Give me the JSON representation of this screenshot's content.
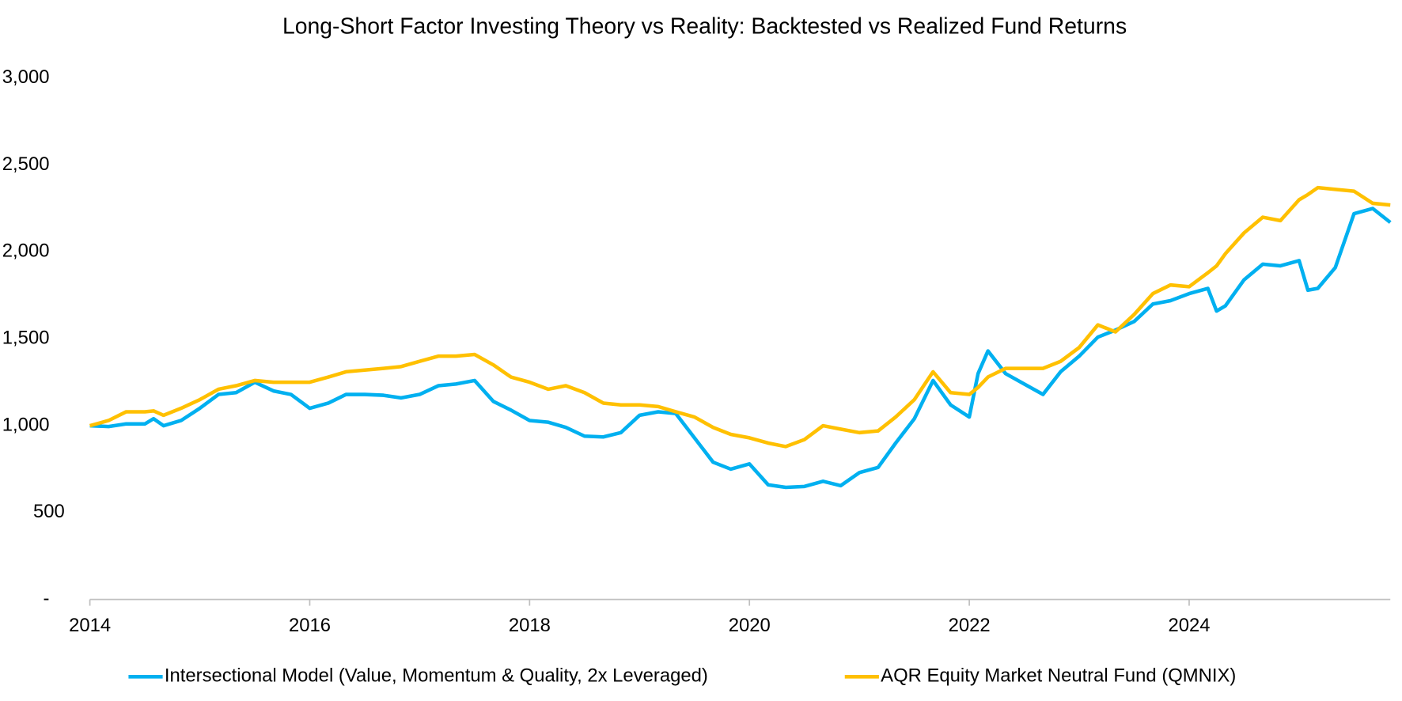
{
  "chart_data": {
    "type": "line",
    "title": "Long-Short Factor Investing Theory vs Reality: Backtested vs Realized Fund Returns",
    "x": [
      2014.0,
      2014.17,
      2014.33,
      2014.5,
      2014.58,
      2014.67,
      2014.83,
      2015.0,
      2015.17,
      2015.33,
      2015.5,
      2015.67,
      2015.83,
      2016.0,
      2016.17,
      2016.33,
      2016.5,
      2016.67,
      2016.83,
      2017.0,
      2017.17,
      2017.33,
      2017.5,
      2017.67,
      2017.83,
      2018.0,
      2018.17,
      2018.33,
      2018.5,
      2018.67,
      2018.83,
      2019.0,
      2019.17,
      2019.33,
      2019.5,
      2019.67,
      2019.83,
      2020.0,
      2020.17,
      2020.33,
      2020.5,
      2020.67,
      2020.83,
      2021.0,
      2021.17,
      2021.33,
      2021.5,
      2021.67,
      2021.83,
      2022.0,
      2022.08,
      2022.17,
      2022.33,
      2022.5,
      2022.67,
      2022.83,
      2023.0,
      2023.17,
      2023.33,
      2023.5,
      2023.67,
      2023.83,
      2024.0,
      2024.17,
      2024.25,
      2024.33,
      2024.5,
      2024.67,
      2024.83,
      2025.0,
      2025.08,
      2025.17,
      2025.33,
      2025.5,
      2025.67,
      2025.83
    ],
    "series": [
      {
        "name": "Intersectional Model (Value, Momentum & Quality, 2x Leveraged)",
        "color": "#00b0f0",
        "values": [
          1000,
          995,
          1010,
          1010,
          1040,
          1000,
          1030,
          1100,
          1180,
          1190,
          1250,
          1200,
          1180,
          1100,
          1130,
          1180,
          1180,
          1175,
          1160,
          1180,
          1230,
          1240,
          1260,
          1140,
          1090,
          1030,
          1020,
          990,
          940,
          935,
          960,
          1060,
          1080,
          1070,
          930,
          790,
          750,
          780,
          660,
          645,
          650,
          680,
          655,
          730,
          760,
          900,
          1040,
          1260,
          1120,
          1050,
          1300,
          1430,
          1300,
          1240,
          1180,
          1310,
          1400,
          1510,
          1550,
          1600,
          1700,
          1720,
          1760,
          1790,
          1660,
          1690,
          1840,
          1930,
          1920,
          1950,
          1780,
          1790,
          1910,
          2220,
          2250,
          2170
        ]
      },
      {
        "name": "AQR Equity Market Neutral Fund (QMNIX)",
        "color": "#ffc000",
        "values": [
          1000,
          1030,
          1080,
          1080,
          1085,
          1060,
          1100,
          1150,
          1210,
          1230,
          1260,
          1250,
          1250,
          1250,
          1280,
          1310,
          1320,
          1330,
          1340,
          1370,
          1400,
          1400,
          1410,
          1350,
          1280,
          1250,
          1210,
          1230,
          1190,
          1130,
          1120,
          1120,
          1110,
          1080,
          1050,
          990,
          950,
          930,
          900,
          880,
          920,
          1000,
          980,
          960,
          970,
          1050,
          1150,
          1310,
          1190,
          1180,
          1220,
          1280,
          1330,
          1330,
          1330,
          1370,
          1450,
          1580,
          1540,
          1640,
          1760,
          1810,
          1800,
          1880,
          1920,
          1990,
          2110,
          2200,
          2180,
          2300,
          2330,
          2370,
          2360,
          2350,
          2280,
          2270
        ]
      }
    ],
    "xlim": [
      2014.0,
      2025.83
    ],
    "xticks": [
      2014,
      2016,
      2018,
      2020,
      2022,
      2024
    ],
    "ylim": [
      0,
      3000
    ],
    "yticks": [
      {
        "value": 0,
        "label": "-"
      },
      500,
      {
        "value": 1000,
        "label": "1,000"
      },
      {
        "value": 1500,
        "label": "1,500"
      },
      {
        "value": 2000,
        "label": "2,000"
      },
      {
        "value": 2500,
        "label": "2,500"
      },
      {
        "value": 3000,
        "label": "3,000"
      }
    ],
    "grid": false,
    "legend": "bottom"
  }
}
